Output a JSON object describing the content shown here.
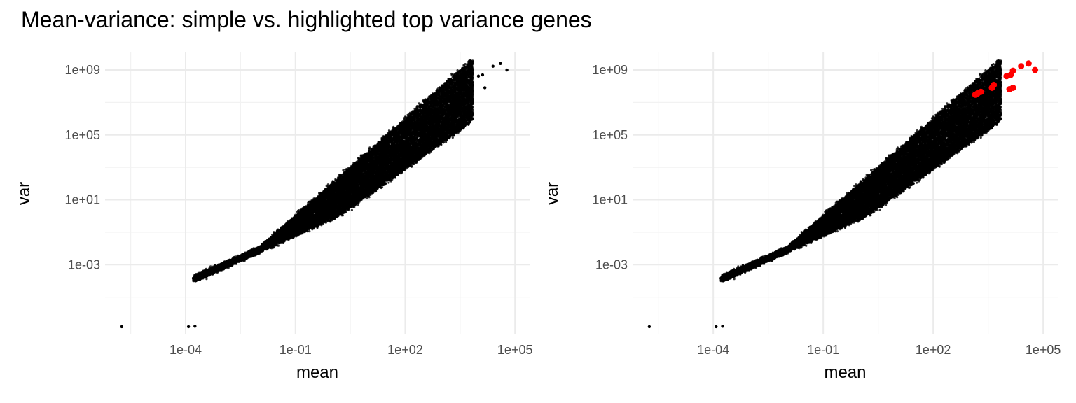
{
  "title": "Mean-variance: simple vs. highlighted top variance genes",
  "colors": {
    "points": "#000000",
    "highlight": "#ff0000",
    "grid": "#ebebeb"
  },
  "chart_data": [
    {
      "type": "scatter",
      "xlabel": "mean",
      "ylabel": "var",
      "x_scale": "log10",
      "y_scale": "log10",
      "xlim": [
        6.3e-07,
        250000.0
      ],
      "ylim": [
        5e-08,
        12000000000.0
      ],
      "x_ticks": [
        "1e-04",
        "1e-01",
        "1e+02",
        "1e+05"
      ],
      "y_ticks": [
        "1e-03",
        "1e+01",
        "1e+05",
        "1e+09"
      ],
      "grid": true,
      "point_count_approx": 25000,
      "outliers": [
        {
          "x": 1.8e-06,
          "y": 1.5e-07
        },
        {
          "x": 0.00012,
          "y": 1.5e-07
        },
        {
          "x": 0.00018,
          "y": 1.6e-07
        },
        {
          "x": 40000.0,
          "y": 2500000000.0
        },
        {
          "x": 60000.0,
          "y": 1000000000.0
        },
        {
          "x": 25000.0,
          "y": 1700000000.0
        },
        {
          "x": 13000.0,
          "y": 500000000.0
        },
        {
          "x": 10000.0,
          "y": 420000000.0
        },
        {
          "x": 15000.0,
          "y": 80000000.0
        }
      ],
      "highlighted": []
    },
    {
      "type": "scatter",
      "xlabel": "mean",
      "ylabel": "var",
      "x_scale": "log10",
      "y_scale": "log10",
      "xlim": [
        6.3e-07,
        250000.0
      ],
      "ylim": [
        5e-08,
        12000000000.0
      ],
      "x_ticks": [
        "1e-04",
        "1e-01",
        "1e+02",
        "1e+05"
      ],
      "y_ticks": [
        "1e-03",
        "1e+01",
        "1e+05",
        "1e+09"
      ],
      "grid": true,
      "point_count_approx": 25000,
      "outliers": [
        {
          "x": 1.8e-06,
          "y": 1.5e-07
        },
        {
          "x": 0.00012,
          "y": 1.5e-07
        },
        {
          "x": 0.00018,
          "y": 1.6e-07
        }
      ],
      "highlighted": [
        {
          "x": 40000.0,
          "y": 2500000000.0
        },
        {
          "x": 60000.0,
          "y": 1000000000.0
        },
        {
          "x": 25000.0,
          "y": 1700000000.0
        },
        {
          "x": 15000.0,
          "y": 900000000.0
        },
        {
          "x": 13000.0,
          "y": 500000000.0
        },
        {
          "x": 10000.0,
          "y": 420000000.0
        },
        {
          "x": 15000.0,
          "y": 80000000.0
        },
        {
          "x": 12000.0,
          "y": 65000000.0
        },
        {
          "x": 4500.0,
          "y": 120000000.0
        },
        {
          "x": 4000.0,
          "y": 80000000.0
        },
        {
          "x": 2000.0,
          "y": 45000000.0
        },
        {
          "x": 1700.0,
          "y": 40000000.0
        },
        {
          "x": 1600.0,
          "y": 35000000.0
        },
        {
          "x": 1400.0,
          "y": 30000000.0
        }
      ]
    }
  ]
}
